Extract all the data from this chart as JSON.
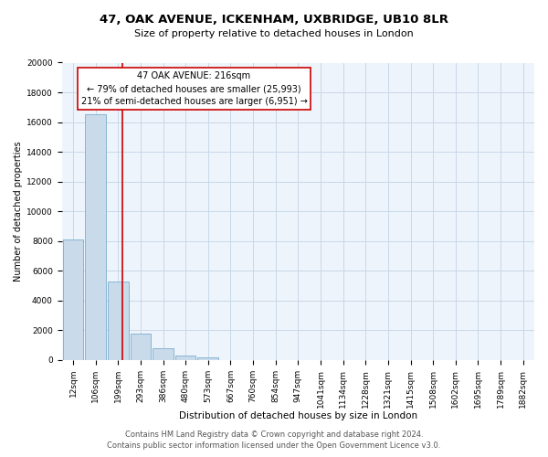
{
  "title": "47, OAK AVENUE, ICKENHAM, UXBRIDGE, UB10 8LR",
  "subtitle": "Size of property relative to detached houses in London",
  "xlabel": "Distribution of detached houses by size in London",
  "ylabel": "Number of detached properties",
  "bar_labels": [
    "12sqm",
    "106sqm",
    "199sqm",
    "293sqm",
    "386sqm",
    "480sqm",
    "573sqm",
    "667sqm",
    "760sqm",
    "854sqm",
    "947sqm",
    "1041sqm",
    "1134sqm",
    "1228sqm",
    "1321sqm",
    "1415sqm",
    "1508sqm",
    "1602sqm",
    "1695sqm",
    "1789sqm",
    "1882sqm"
  ],
  "bar_values": [
    8100,
    16500,
    5300,
    1800,
    800,
    300,
    200,
    0,
    0,
    0,
    0,
    0,
    0,
    0,
    0,
    0,
    0,
    0,
    0,
    0,
    0
  ],
  "bar_color": "#c9daea",
  "bar_edgecolor": "#7aadcf",
  "ylim": [
    0,
    20000
  ],
  "yticks": [
    0,
    2000,
    4000,
    6000,
    8000,
    10000,
    12000,
    14000,
    16000,
    18000,
    20000
  ],
  "property_line_color": "#cc0000",
  "annotation_title": "47 OAK AVENUE: 216sqm",
  "annotation_line1": "← 79% of detached houses are smaller (25,993)",
  "annotation_line2": "21% of semi-detached houses are larger (6,951) →",
  "annotation_box_color": "#ffffff",
  "annotation_box_edgecolor": "#cc0000",
  "footer_line1": "Contains HM Land Registry data © Crown copyright and database right 2024.",
  "footer_line2": "Contains public sector information licensed under the Open Government Licence v3.0.",
  "bg_color": "#eef4fb",
  "grid_color": "#c8d8e8",
  "title_fontsize": 9.5,
  "subtitle_fontsize": 8,
  "xlabel_fontsize": 7.5,
  "ylabel_fontsize": 7,
  "tick_fontsize": 6.5,
  "annotation_fontsize": 7,
  "footer_fontsize": 6
}
